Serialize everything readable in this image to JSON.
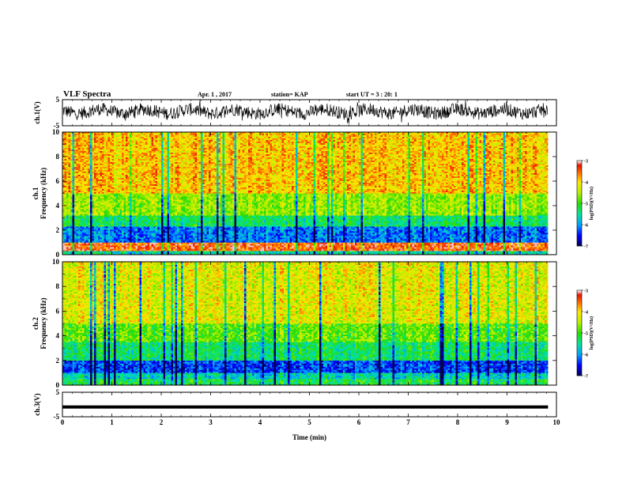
{
  "header": {
    "title": "VLF Spectra",
    "date": "Apr. 1 , 2017",
    "station": "station= KAP",
    "start_ut": "start UT = 3 : 20: 1"
  },
  "chart_data": [
    {
      "type": "line",
      "panel": "ch.1 waveform",
      "ylabel": "ch.1(V)",
      "ylim": [
        -5,
        5
      ],
      "yticks": [
        "5",
        "-5"
      ],
      "xlim": [
        0,
        10
      ],
      "description_values": {
        "mean_approx": 0.5,
        "amplitude_approx": 3
      }
    },
    {
      "type": "heatmap",
      "panel": "ch.1 spectrogram",
      "ylabel": "ch.1 Frequency (kHz)",
      "ylabel_line1": "ch.1",
      "ylabel_line2": "Frequency (kHz)",
      "ylim": [
        0,
        10
      ],
      "yticks": [
        "0",
        "2",
        "4",
        "6",
        "8",
        "10"
      ],
      "xlim": [
        0,
        9.83
      ],
      "colorbar": {
        "label": "log(PSD)(V²/Hz)",
        "range": [
          -7,
          -3
        ],
        "ticks": [
          "-3",
          "-4",
          "-5",
          "-6",
          "-7"
        ]
      },
      "bands": [
        {
          "f": [
            0,
            0.3
          ],
          "level": -5.5
        },
        {
          "f": [
            0.3,
            1.0
          ],
          "level": -3.4
        },
        {
          "f": [
            1.0,
            2.3
          ],
          "level": -6.1
        },
        {
          "f": [
            2.3,
            3.2
          ],
          "level": -5.3
        },
        {
          "f": [
            3.2,
            5.0
          ],
          "level": -4.6
        },
        {
          "f": [
            5.0,
            10.0
          ],
          "level": -3.9
        }
      ]
    },
    {
      "type": "heatmap",
      "panel": "ch.2 spectrogram",
      "ylabel": "ch.2 Frequency (kHz)",
      "ylabel_line1": "ch.2",
      "ylabel_line2": "Frequency (kHz)",
      "ylim": [
        0,
        10
      ],
      "yticks": [
        "0",
        "2",
        "4",
        "6",
        "8",
        "10"
      ],
      "xlim": [
        0,
        9.83
      ],
      "colorbar": {
        "label": "log(PSD)(V²/Hz)",
        "range": [
          -7,
          -3
        ],
        "ticks": [
          "-3",
          "-4",
          "-5",
          "-6",
          "-7"
        ]
      },
      "bands": [
        {
          "f": [
            0,
            0.5
          ],
          "level": -5.2
        },
        {
          "f": [
            0.5,
            1.0
          ],
          "level": -5.6
        },
        {
          "f": [
            1.0,
            2.0
          ],
          "level": -6.3
        },
        {
          "f": [
            2.0,
            3.5
          ],
          "level": -5.3
        },
        {
          "f": [
            3.5,
            5.0
          ],
          "level": -4.8
        },
        {
          "f": [
            5.0,
            10.0
          ],
          "level": -4.2
        }
      ]
    },
    {
      "type": "line",
      "panel": "ch.3 waveform",
      "ylabel": "ch.3(V)",
      "ylim": [
        -5,
        5
      ],
      "yticks": [
        "5",
        "-5"
      ],
      "xlim": [
        0,
        9.83
      ],
      "values_constant": -1
    }
  ],
  "xaxis": {
    "label": "Time (min)",
    "ticks": [
      "0",
      "1",
      "2",
      "3",
      "4",
      "5",
      "6",
      "7",
      "8",
      "9",
      "10"
    ],
    "range": [
      0,
      10
    ]
  }
}
